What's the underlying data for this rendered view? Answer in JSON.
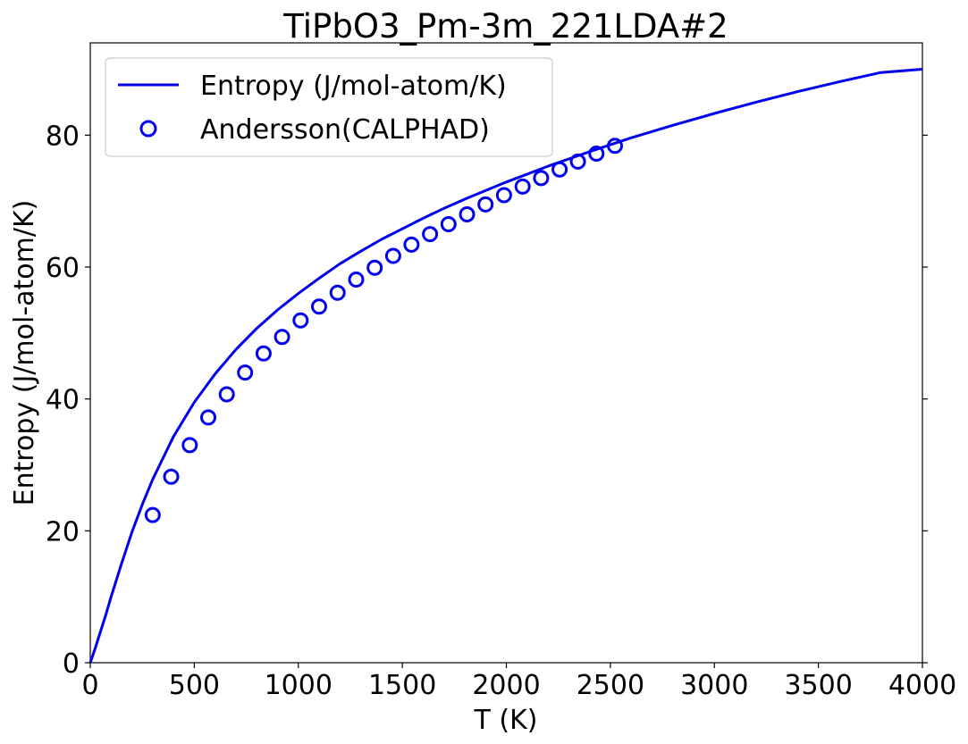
{
  "chart_data": {
    "type": "line",
    "title": "TiPbO3_Pm-3m_221LDA#2",
    "xlabel": "T (K)",
    "ylabel": "Entropy (J/mol-atom/K)",
    "xlim": [
      0,
      4000
    ],
    "ylim": [
      0,
      94
    ],
    "xticks": [
      0,
      500,
      1000,
      1500,
      2000,
      2500,
      3000,
      3500,
      4000
    ],
    "yticks": [
      0,
      20,
      40,
      60,
      80
    ],
    "grid": false,
    "legend_position": "top-left",
    "color": "#0000ee",
    "series": [
      {
        "name": "Entropy (J/mol-atom/K)",
        "style": "line",
        "x": [
          0,
          25,
          50,
          75,
          100,
          150,
          200,
          250,
          300,
          400,
          500,
          600,
          700,
          800,
          900,
          1000,
          1100,
          1200,
          1300,
          1400,
          1500,
          1600,
          1700,
          1800,
          1900,
          2000,
          2200,
          2400,
          2600,
          2800,
          3000,
          3200,
          3400,
          3600,
          3800,
          4000
        ],
        "y": [
          0,
          2.3,
          4.8,
          7.3,
          10.0,
          15.0,
          19.8,
          24.0,
          27.8,
          34.3,
          39.5,
          43.8,
          47.5,
          50.7,
          53.5,
          56.0,
          58.3,
          60.5,
          62.4,
          64.2,
          65.8,
          67.4,
          68.9,
          70.3,
          71.6,
          72.9,
          75.3,
          77.5,
          79.6,
          81.5,
          83.3,
          85.0,
          86.6,
          88.1,
          89.5,
          90.0
        ]
      },
      {
        "name": "Andersson(CALPHAD)",
        "style": "scatter",
        "marker": "open-circle",
        "x": [
          300,
          389,
          478,
          567,
          656,
          744,
          833,
          922,
          1011,
          1100,
          1189,
          1278,
          1367,
          1456,
          1544,
          1633,
          1722,
          1811,
          1900,
          1989,
          2078,
          2167,
          2256,
          2344,
          2433,
          2522
        ],
        "y": [
          22.4,
          28.2,
          33.0,
          37.2,
          40.7,
          44.0,
          46.9,
          49.4,
          51.9,
          54.0,
          56.1,
          58.1,
          59.9,
          61.7,
          63.4,
          65.0,
          66.5,
          68.0,
          69.5,
          70.9,
          72.2,
          73.5,
          74.8,
          76.0,
          77.2,
          78.4
        ]
      }
    ]
  }
}
